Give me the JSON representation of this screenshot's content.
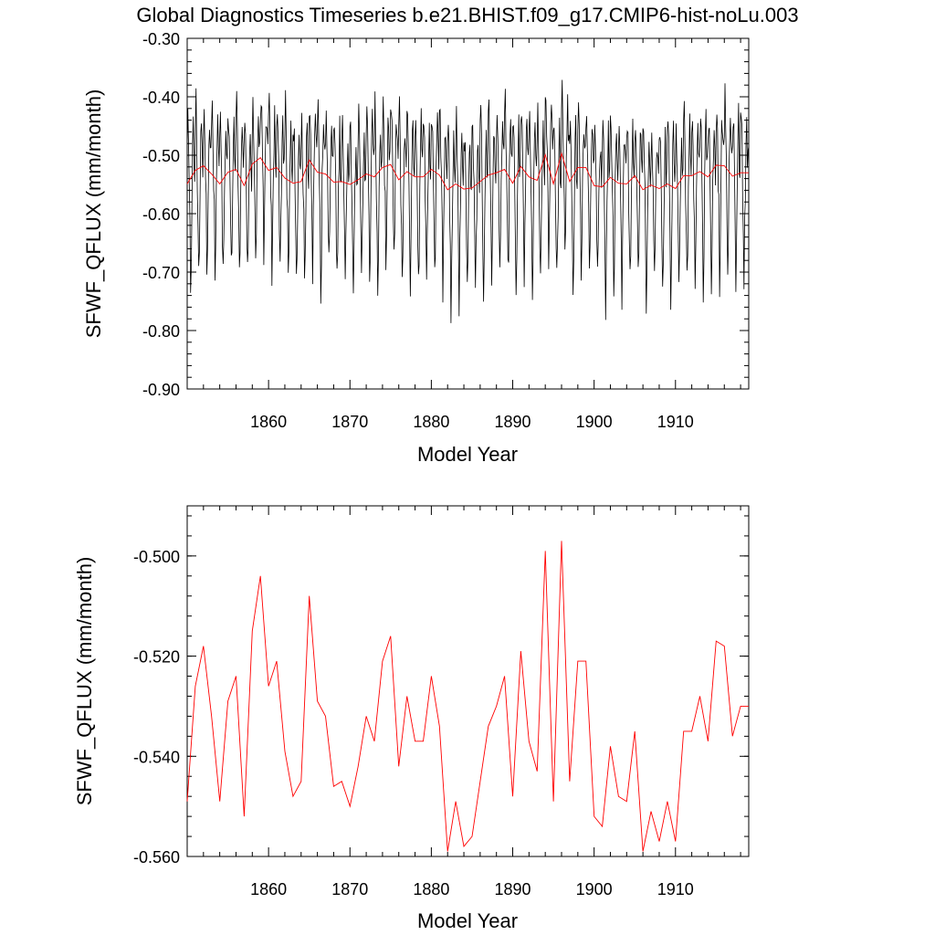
{
  "page_title": "Global Diagnostics Timeseries b.e21.BHIST.f09_g17.CMIP6-hist-noLu.003",
  "colors": {
    "monthly": "#000000",
    "annual": "#ff0000"
  },
  "chart_data": [
    {
      "type": "line",
      "ylabel": "SFWF_QFLUX (mm/month)",
      "xlabel": "Model Year",
      "xlim": [
        1850,
        1919
      ],
      "ylim": [
        -0.9,
        -0.3
      ],
      "xticks": [
        1860,
        1870,
        1880,
        1890,
        1900,
        1910
      ],
      "xtick_labels": [
        "1860",
        "1870",
        "1880",
        "1890",
        "1900",
        "1910"
      ],
      "yticks": [
        -0.3,
        -0.4,
        -0.5,
        -0.6,
        -0.7,
        -0.8,
        -0.9
      ],
      "ytick_labels": [
        "-0.30",
        "-0.40",
        "-0.50",
        "-0.60",
        "-0.70",
        "-0.80",
        "-0.90"
      ],
      "series": [
        {
          "kind": "monthly",
          "start_year": 1850,
          "mean": -0.535,
          "seasonal": [
            -0.45,
            -0.42,
            -0.47,
            -0.55,
            -0.62,
            -0.72,
            -0.66,
            -0.56,
            -0.48,
            -0.44,
            -0.5,
            -0.52
          ],
          "years_overlay": "annual"
        },
        {
          "kind": "annual",
          "x": [
            1850,
            1851,
            1852,
            1853,
            1854,
            1855,
            1856,
            1857,
            1858,
            1859,
            1860,
            1861,
            1862,
            1863,
            1864,
            1865,
            1866,
            1867,
            1868,
            1869,
            1870,
            1871,
            1872,
            1873,
            1874,
            1875,
            1876,
            1877,
            1878,
            1879,
            1880,
            1881,
            1882,
            1883,
            1884,
            1885,
            1886,
            1887,
            1888,
            1889,
            1890,
            1891,
            1892,
            1893,
            1894,
            1895,
            1896,
            1897,
            1898,
            1899,
            1900,
            1901,
            1902,
            1903,
            1904,
            1905,
            1906,
            1907,
            1908,
            1909,
            1910,
            1911,
            1912,
            1913,
            1914,
            1915,
            1916,
            1917,
            1918,
            1919
          ],
          "y": [
            -0.549,
            -0.526,
            -0.518,
            -0.532,
            -0.549,
            -0.529,
            -0.524,
            -0.552,
            -0.515,
            -0.504,
            -0.526,
            -0.521,
            -0.539,
            -0.548,
            -0.545,
            -0.508,
            -0.529,
            -0.532,
            -0.546,
            -0.545,
            -0.55,
            -0.542,
            -0.532,
            -0.537,
            -0.521,
            -0.516,
            -0.542,
            -0.528,
            -0.537,
            -0.537,
            -0.524,
            -0.534,
            -0.559,
            -0.549,
            -0.558,
            -0.556,
            -0.545,
            -0.534,
            -0.53,
            -0.524,
            -0.548,
            -0.519,
            -0.537,
            -0.543,
            -0.499,
            -0.549,
            -0.497,
            -0.545,
            -0.521,
            -0.521,
            -0.552,
            -0.554,
            -0.538,
            -0.548,
            -0.549,
            -0.535,
            -0.559,
            -0.551,
            -0.557,
            -0.549,
            -0.557,
            -0.535,
            -0.535,
            -0.528,
            -0.537,
            -0.517,
            -0.518,
            -0.536,
            -0.53,
            -0.53
          ]
        }
      ]
    },
    {
      "type": "line",
      "ylabel": "SFWF_QFLUX (mm/month)",
      "xlabel": "Model Year",
      "xlim": [
        1850,
        1919
      ],
      "ylim": [
        -0.56,
        -0.49
      ],
      "xticks": [
        1860,
        1870,
        1880,
        1890,
        1900,
        1910
      ],
      "xtick_labels": [
        "1860",
        "1870",
        "1880",
        "1890",
        "1900",
        "1910"
      ],
      "yticks": [
        -0.5,
        -0.52,
        -0.54,
        -0.56
      ],
      "ytick_labels": [
        "-0.500",
        "-0.520",
        "-0.540",
        "-0.560"
      ],
      "series": [
        {
          "kind": "annual",
          "use_series_from_chart": 0
        }
      ]
    }
  ]
}
